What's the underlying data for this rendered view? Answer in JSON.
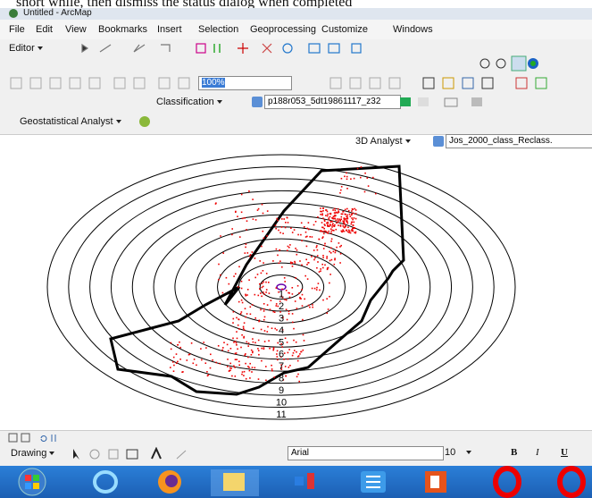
{
  "status_text": "short while, then dismiss the status dialog when completed",
  "window_title": "Untitled - ArcMap",
  "menu": [
    "File",
    "Edit",
    "View",
    "Bookmarks",
    "Insert",
    "Selection",
    "Geoprocessing",
    "Customize",
    "Windows"
  ],
  "toolbars": {
    "editor": "Editor",
    "zoom": "100%",
    "classification": "Classification",
    "classification_layer": "p188r053_5dt19861117_z32",
    "geostatistical": "Geostatistical Analyst",
    "analyst_3d": "3D Analyst",
    "analyst_3d_layer": "Jos_2000_class_Reclass."
  },
  "rings": {
    "labels": [
      1,
      2,
      3,
      4,
      5,
      6,
      7,
      8,
      9,
      10,
      11
    ]
  },
  "drawing_toolbar": {
    "drawing": "Drawing",
    "font": "Arial",
    "size": "10",
    "bold": "B",
    "italic": "I",
    "underline": "U"
  }
}
